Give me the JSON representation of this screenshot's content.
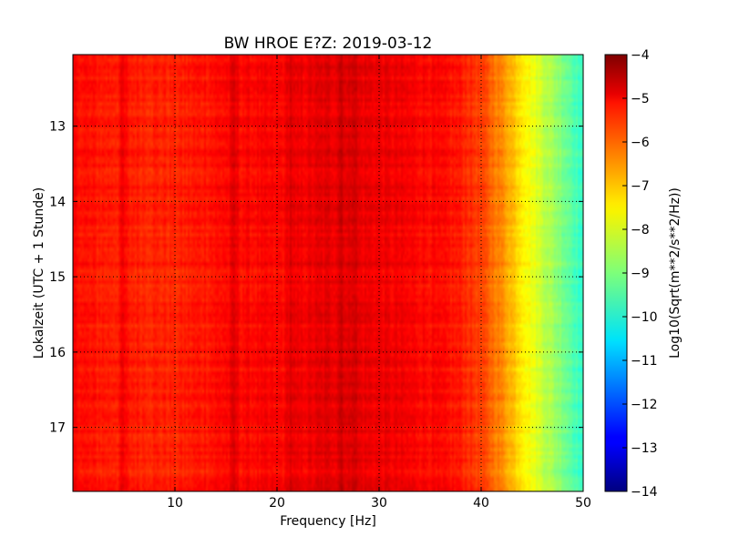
{
  "chart_data": {
    "type": "heatmap",
    "title": "BW HROE E?Z: 2019-03-12",
    "xlabel": "Frequency [Hz]",
    "ylabel": "Lokalzeit (UTC + 1 Stunde)",
    "xlim": [
      0,
      50
    ],
    "ylim": [
      17.85,
      12.05
    ],
    "x_ticks": [
      10,
      20,
      30,
      40,
      50
    ],
    "x_tick_labels": [
      "10",
      "20",
      "30",
      "40",
      "50"
    ],
    "y_ticks": [
      13,
      14,
      15,
      16,
      17
    ],
    "y_tick_labels": [
      "13",
      "14",
      "15",
      "16",
      "17"
    ],
    "grid": true,
    "colormap": "jet",
    "colorbar": {
      "label": "Log10(Sqrt(m**2/s**2/Hz))",
      "range": [
        -14,
        -4
      ],
      "ticks": [
        -4,
        -5,
        -6,
        -7,
        -8,
        -9,
        -10,
        -11,
        -12,
        -13,
        -14
      ],
      "tick_labels": [
        "−4",
        "−5",
        "−6",
        "−7",
        "−8",
        "−9",
        "−10",
        "−11",
        "−12",
        "−13",
        "−14"
      ]
    },
    "spectral_profile": {
      "frequency_hz": [
        0,
        1,
        3,
        5,
        10,
        15,
        20,
        25,
        30,
        35,
        38,
        40,
        42,
        44,
        46,
        48,
        50
      ],
      "log_amplitude": [
        -5.2,
        -5.4,
        -5.5,
        -5.5,
        -5.6,
        -5.3,
        -5.3,
        -5.0,
        -5.1,
        -5.3,
        -5.5,
        -5.9,
        -6.6,
        -7.5,
        -8.3,
        -9.0,
        -9.8
      ]
    },
    "dark_frequency_lines_hz": [
      4.9,
      15.8,
      21.3,
      26.3,
      27.5
    ]
  }
}
